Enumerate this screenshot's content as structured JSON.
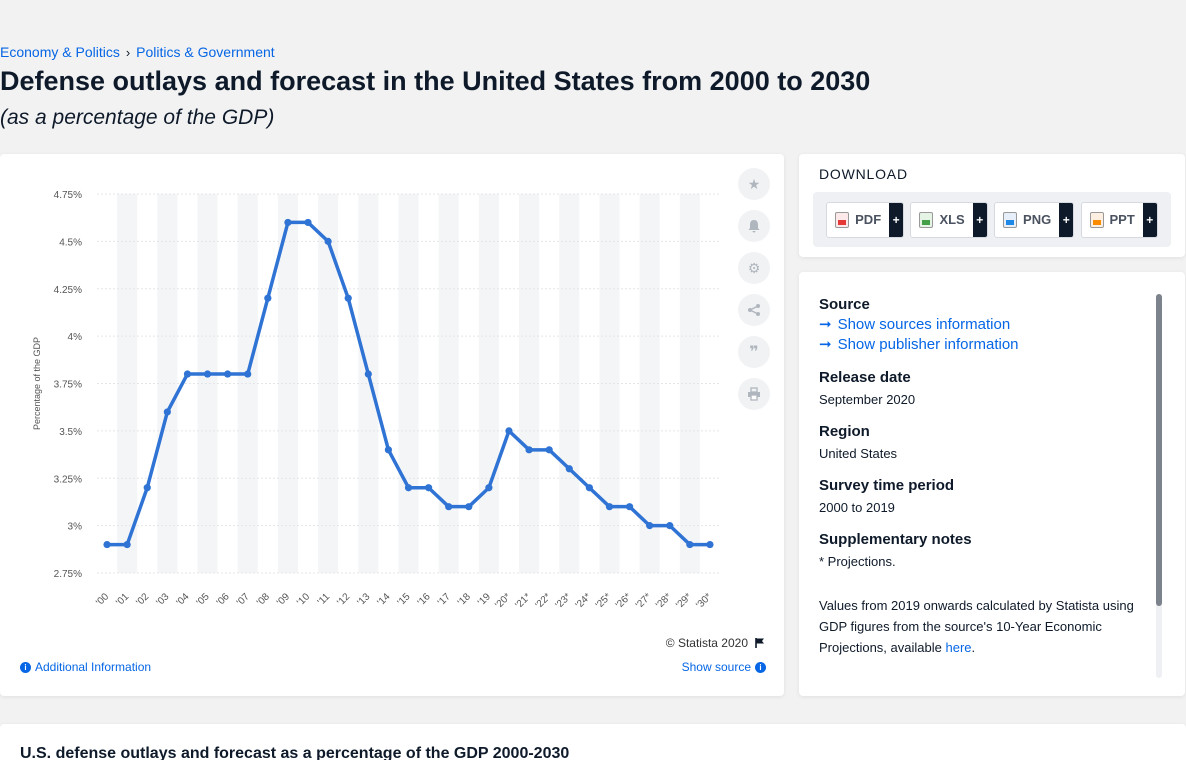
{
  "breadcrumb": {
    "item1": "Economy & Politics",
    "separator": "›",
    "item2": "Politics & Government"
  },
  "title": "Defense outlays and forecast in the United States from 2000 to 2030",
  "subtitle": "(as a percentage of the GDP)",
  "chart_data": {
    "type": "line",
    "ylabel": "Percentage of the GDP",
    "ylim": [
      2.75,
      4.75
    ],
    "yticks": [
      2.75,
      3,
      3.25,
      3.5,
      3.75,
      4,
      4.25,
      4.5,
      4.75
    ],
    "ytick_labels": [
      "2.75%",
      "3%",
      "3.25%",
      "3.5%",
      "3.75%",
      "4%",
      "4.25%",
      "4.5%",
      "4.75%"
    ],
    "categories": [
      "'00",
      "'01",
      "'02",
      "'03",
      "'04",
      "'05",
      "'06",
      "'07",
      "'08",
      "'09",
      "'10",
      "'11",
      "'12",
      "'13",
      "'14",
      "'15",
      "'16",
      "'17",
      "'18",
      "'19",
      "'20*",
      "'21*",
      "'22*",
      "'23*",
      "'24*",
      "'25*",
      "'26*",
      "'27*",
      "'28*",
      "'29*",
      "'30*"
    ],
    "values": [
      2.9,
      2.9,
      3.2,
      3.6,
      3.8,
      3.8,
      3.8,
      3.8,
      4.2,
      4.6,
      4.6,
      4.5,
      4.2,
      3.8,
      3.4,
      3.2,
      3.2,
      3.1,
      3.1,
      3.2,
      3.5,
      3.4,
      3.4,
      3.3,
      3.2,
      3.1,
      3.1,
      3.0,
      3.0,
      2.9,
      2.9
    ],
    "line_color": "#2f73d4",
    "grid": true,
    "legend": "none"
  },
  "chart_footer": {
    "copyright": "© Statista 2020",
    "additional_info": "Additional Information",
    "show_source": "Show source"
  },
  "tools": [
    "star-icon",
    "bell-icon",
    "gear-icon",
    "share-icon",
    "quote-icon",
    "print-icon"
  ],
  "download": {
    "title": "DOWNLOAD",
    "buttons": [
      {
        "label": "PDF",
        "plus": "+"
      },
      {
        "label": "XLS",
        "plus": "+"
      },
      {
        "label": "PNG",
        "plus": "+"
      },
      {
        "label": "PPT",
        "plus": "+"
      }
    ]
  },
  "meta": {
    "source_heading": "Source",
    "show_sources": "Show sources information",
    "show_publisher": "Show publisher information",
    "release_heading": "Release date",
    "release_value": "September 2020",
    "region_heading": "Region",
    "region_value": "United States",
    "survey_heading": "Survey time period",
    "survey_value": "2000 to 2019",
    "supp_heading": "Supplementary notes",
    "supp_value": "* Projections.",
    "supp_para": "Values from 2019 onwards calculated by Statista using GDP figures from the source's 10-Year Economic Projections, available",
    "supp_link": "here",
    "supp_end": "."
  },
  "bottom_title": "U.S. defense outlays and forecast as a percentage of the GDP 2000-2030",
  "colors": {
    "accent": "#0666e5",
    "dark": "#0e1a2a",
    "line": "#2f73d4"
  }
}
